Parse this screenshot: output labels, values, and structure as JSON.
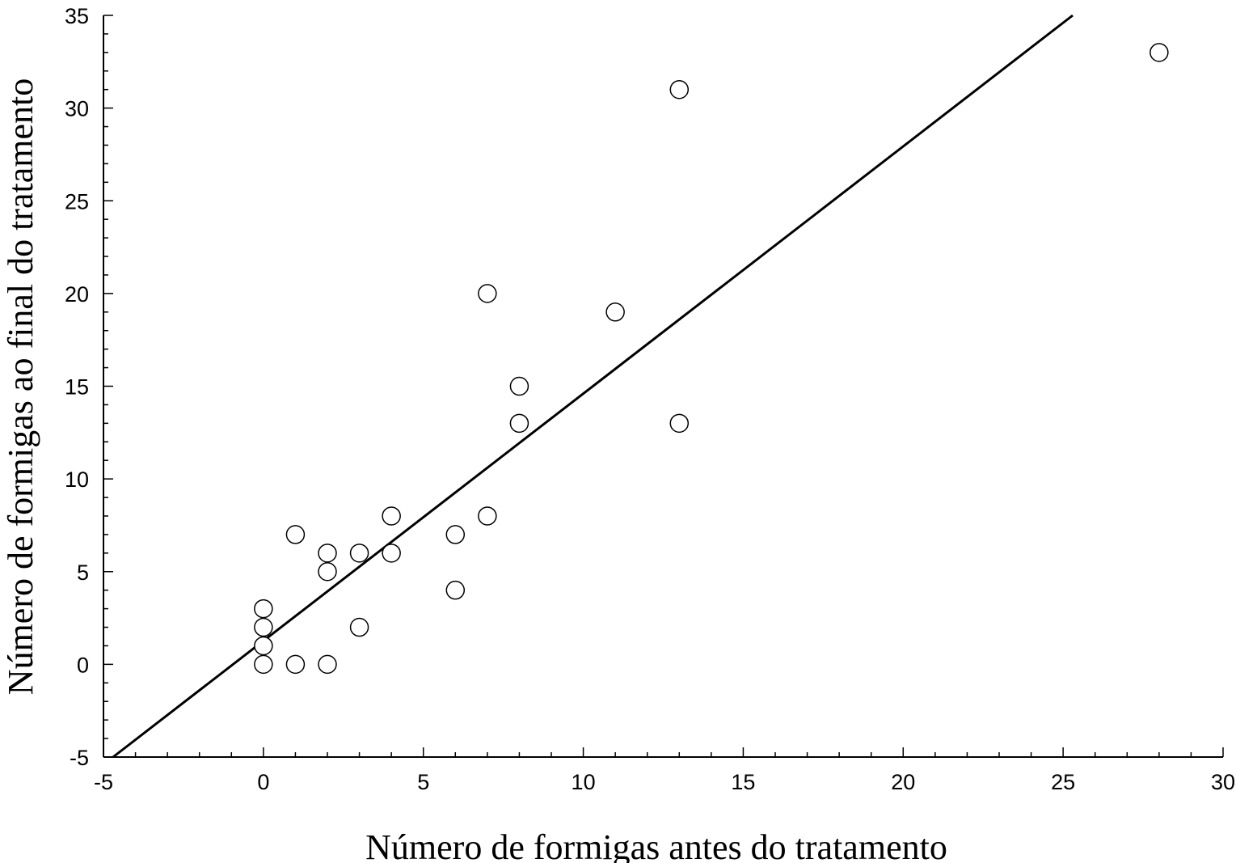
{
  "chart_data": {
    "type": "scatter",
    "title": "",
    "xlabel": "Número de formigas antes do tratamento",
    "ylabel": "Número de formigas ao final do tratamento",
    "xlim": [
      -5,
      30
    ],
    "ylim": [
      -5,
      35
    ],
    "x_ticks": [
      -5,
      0,
      5,
      10,
      15,
      20,
      25,
      30
    ],
    "y_ticks": [
      -5,
      0,
      5,
      10,
      15,
      20,
      25,
      30,
      35
    ],
    "x_tick_labels": [
      "-5",
      "0",
      "5",
      "10",
      "15",
      "20",
      "25",
      "30"
    ],
    "y_tick_labels": [
      "-5",
      "0",
      "5",
      "10",
      "15",
      "20",
      "25",
      "30",
      "35"
    ],
    "grid": false,
    "legend": "none",
    "marker": "open-circle",
    "series": [
      {
        "points": [
          {
            "x": 0,
            "y": 0
          },
          {
            "x": 0,
            "y": 1
          },
          {
            "x": 0,
            "y": 2
          },
          {
            "x": 0,
            "y": 3
          },
          {
            "x": 1,
            "y": 0
          },
          {
            "x": 1,
            "y": 7
          },
          {
            "x": 2,
            "y": 0
          },
          {
            "x": 2,
            "y": 5
          },
          {
            "x": 2,
            "y": 6
          },
          {
            "x": 3,
            "y": 2
          },
          {
            "x": 3,
            "y": 6
          },
          {
            "x": 4,
            "y": 6
          },
          {
            "x": 4,
            "y": 8
          },
          {
            "x": 6,
            "y": 4
          },
          {
            "x": 6,
            "y": 7
          },
          {
            "x": 7,
            "y": 8
          },
          {
            "x": 7,
            "y": 20
          },
          {
            "x": 8,
            "y": 13
          },
          {
            "x": 8,
            "y": 15
          },
          {
            "x": 11,
            "y": 19
          },
          {
            "x": 13,
            "y": 13
          },
          {
            "x": 13,
            "y": 31
          },
          {
            "x": 28,
            "y": 33
          }
        ]
      }
    ],
    "regression_line": {
      "x": [
        -4.7,
        25.3
      ],
      "y": [
        -5,
        35
      ]
    }
  }
}
